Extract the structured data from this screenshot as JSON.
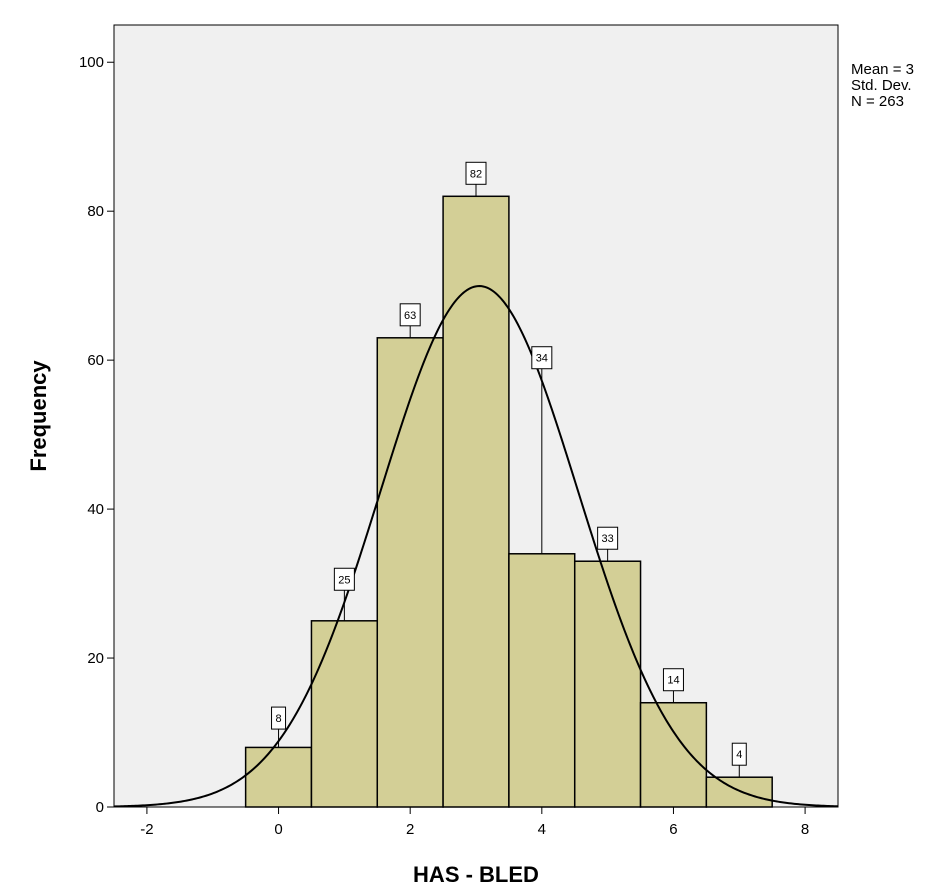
{
  "chart_data": {
    "type": "bar",
    "subtype": "histogram",
    "xlabel": "HAS - BLED",
    "ylabel": "Frequency",
    "xlim": [
      -2.5,
      8.5
    ],
    "ylim": [
      0,
      105
    ],
    "xticks": [
      -2,
      0,
      2,
      4,
      6,
      8
    ],
    "yticks": [
      0,
      20,
      40,
      60,
      80,
      100
    ],
    "bins": [
      {
        "x0": -0.5,
        "x1": 0.5,
        "value": 8
      },
      {
        "x0": 0.5,
        "x1": 1.5,
        "value": 25
      },
      {
        "x0": 1.5,
        "x1": 2.5,
        "value": 63
      },
      {
        "x0": 2.5,
        "x1": 3.5,
        "value": 82
      },
      {
        "x0": 3.5,
        "x1": 4.5,
        "value": 34
      },
      {
        "x0": 4.5,
        "x1": 5.5,
        "value": 33
      },
      {
        "x0": 5.5,
        "x1": 6.5,
        "value": 14
      },
      {
        "x0": 6.5,
        "x1": 7.5,
        "value": 4
      }
    ],
    "normal_curve": {
      "mean": 3.05,
      "std_dev": 1.5,
      "n": 263
    },
    "grid": false,
    "colors": {
      "bar_fill": "#d3cf96",
      "plot_background": "#f0f0f0",
      "curve": "#000000"
    }
  },
  "stats_box": {
    "mean": "Mean = 3",
    "std_dev": "Std. Dev.",
    "n": "N = 263"
  }
}
